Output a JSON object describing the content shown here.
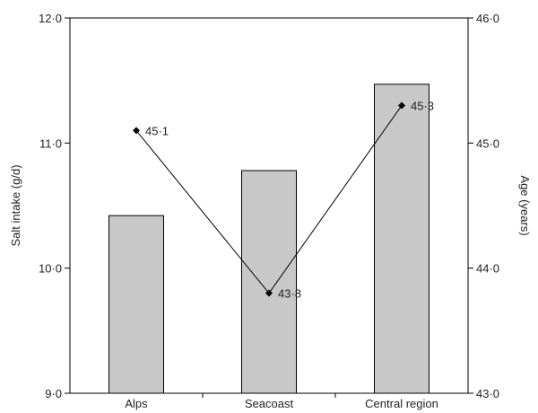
{
  "chart_data": {
    "type": "bar",
    "categories": [
      "Alps",
      "Seacoast",
      "Central region"
    ],
    "bar_series": {
      "values": [
        10.42,
        10.78,
        11.47
      ],
      "color": "#c8c8c8",
      "axis": "left"
    },
    "line_series": {
      "values": [
        45.1,
        43.8,
        45.3
      ],
      "labels": [
        "45·1",
        "43·8",
        "45·3"
      ],
      "axis": "right"
    },
    "left_axis": {
      "label": "Salt intake (g/d)",
      "ylim": [
        9.0,
        12.0
      ],
      "ticks": [
        9.0,
        10.0,
        11.0,
        12.0
      ],
      "tick_labels": [
        "9·0",
        "10·0",
        "11·0",
        "12·0"
      ]
    },
    "right_axis": {
      "label": "Age (years)",
      "ylim": [
        43.0,
        46.0
      ],
      "ticks": [
        43.0,
        44.0,
        45.0,
        46.0
      ],
      "tick_labels": [
        "43·0",
        "44·0",
        "45·0",
        "46·0"
      ]
    },
    "grid": false
  }
}
